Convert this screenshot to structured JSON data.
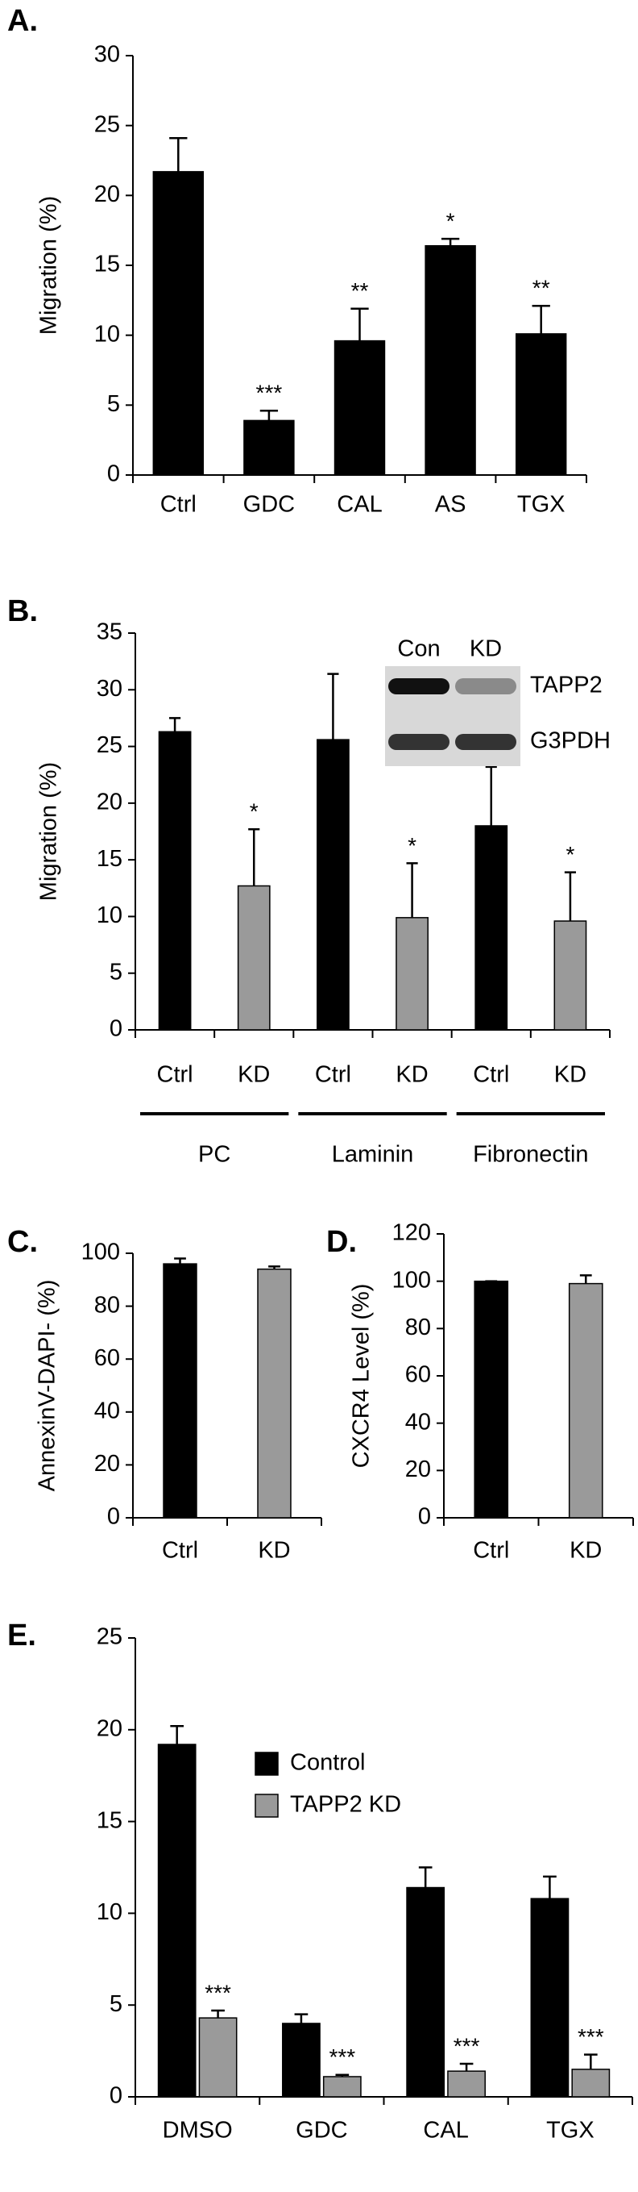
{
  "chart_data": [
    {
      "type": "bar",
      "panel_label": "A.",
      "ylabel": "Migration (%)",
      "categories": [
        "Ctrl",
        "GDC",
        "CAL",
        "AS",
        "TGX"
      ],
      "values": [
        21.7,
        3.9,
        9.6,
        16.4,
        10.1
      ],
      "errors": [
        2.4,
        0.7,
        2.3,
        0.5,
        2.0
      ],
      "annotations": [
        null,
        "***",
        "**",
        "*",
        "**"
      ],
      "color": "#000000",
      "ylim": [
        0,
        30
      ],
      "yticks": [
        0,
        5,
        10,
        15,
        20,
        25,
        30
      ]
    },
    {
      "type": "bar",
      "panel_label": "B.",
      "ylabel": "Migration (%)",
      "categories": [
        "Ctrl",
        "KD",
        "Ctrl",
        "KD",
        "Ctrl",
        "KD"
      ],
      "groups": [
        "PC",
        "Laminin",
        "Fibronectin"
      ],
      "values": [
        26.3,
        12.7,
        25.6,
        9.9,
        18.0,
        9.6
      ],
      "errors": [
        1.2,
        5.0,
        5.8,
        4.8,
        5.2,
        4.3
      ],
      "annotations": [
        null,
        "*",
        null,
        "*",
        null,
        "*"
      ],
      "colors": [
        "#000000",
        "#9a9a9a",
        "#000000",
        "#9a9a9a",
        "#000000",
        "#9a9a9a"
      ],
      "ylim": [
        0,
        35
      ],
      "yticks": [
        0,
        5,
        10,
        15,
        20,
        25,
        30,
        35
      ],
      "inset": {
        "columns": [
          "Con",
          "KD"
        ],
        "rows": [
          "TAPP2",
          "G3PDH"
        ]
      }
    },
    {
      "type": "bar",
      "panel_label": "C.",
      "ylabel": "AnnexinV-DAPI- (%)",
      "categories": [
        "Ctrl",
        "KD"
      ],
      "values": [
        96,
        94
      ],
      "errors": [
        2,
        1
      ],
      "colors": [
        "#000000",
        "#9a9a9a"
      ],
      "ylim": [
        0,
        100
      ],
      "yticks": [
        0,
        20,
        40,
        60,
        80,
        100
      ]
    },
    {
      "type": "bar",
      "panel_label": "D.",
      "ylabel": "CXCR4 Level (%)",
      "categories": [
        "Ctrl",
        "KD"
      ],
      "values": [
        100,
        99
      ],
      "errors": [
        0,
        3.5
      ],
      "colors": [
        "#000000",
        "#9a9a9a"
      ],
      "ylim": [
        0,
        120
      ],
      "yticks": [
        0,
        20,
        40,
        60,
        80,
        100,
        120
      ]
    },
    {
      "type": "grouped_bar",
      "panel_label": "E.",
      "categories": [
        "DMSO",
        "GDC",
        "CAL",
        "TGX"
      ],
      "series": [
        {
          "name": "Control",
          "color": "#000000",
          "values": [
            19.2,
            4.0,
            11.4,
            10.8
          ],
          "errors": [
            1.0,
            0.5,
            1.1,
            1.2
          ]
        },
        {
          "name": "TAPP2 KD",
          "color": "#9a9a9a",
          "values": [
            4.3,
            1.1,
            1.4,
            1.5
          ],
          "errors": [
            0.4,
            0.1,
            0.4,
            0.8
          ],
          "annotations": [
            "***",
            "***",
            "***",
            "***"
          ]
        }
      ],
      "ylim": [
        0,
        25
      ],
      "yticks": [
        0,
        5,
        10,
        15,
        20,
        25
      ]
    }
  ]
}
